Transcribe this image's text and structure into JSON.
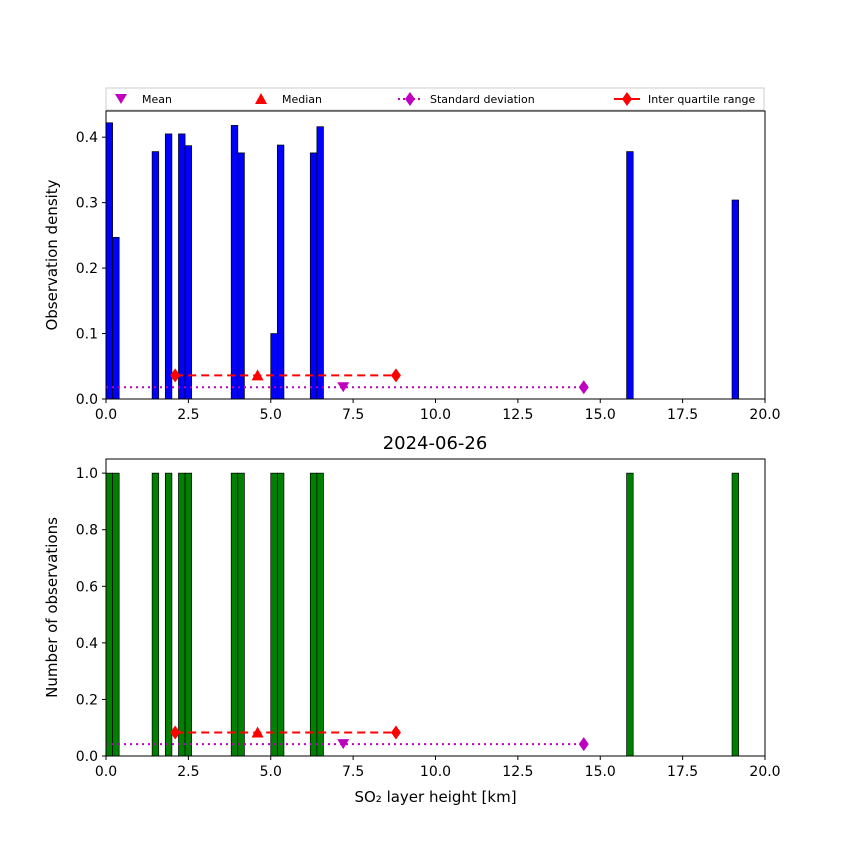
{
  "chart_data": [
    {
      "type": "bar",
      "title": "",
      "xlabel": "",
      "ylabel": "Observation density",
      "xlim": [
        0,
        20
      ],
      "ylim": [
        0,
        0.44
      ],
      "xticks": [
        "0.0",
        "2.5",
        "5.0",
        "7.5",
        "10.0",
        "12.5",
        "15.0",
        "17.5",
        "20.0"
      ],
      "yticks": [
        "0.0",
        "0.1",
        "0.2",
        "0.3",
        "0.4"
      ],
      "bar_color": "#0000ff",
      "bins": [
        {
          "x0": 0.0,
          "x1": 0.2,
          "value": 0.422
        },
        {
          "x0": 0.2,
          "x1": 0.4,
          "value": 0.247
        },
        {
          "x0": 1.4,
          "x1": 1.6,
          "value": 0.378
        },
        {
          "x0": 1.8,
          "x1": 2.0,
          "value": 0.405
        },
        {
          "x0": 2.2,
          "x1": 2.4,
          "value": 0.405
        },
        {
          "x0": 2.4,
          "x1": 2.6,
          "value": 0.387
        },
        {
          "x0": 3.8,
          "x1": 4.0,
          "value": 0.418
        },
        {
          "x0": 4.0,
          "x1": 4.2,
          "value": 0.376
        },
        {
          "x0": 5.0,
          "x1": 5.2,
          "value": 0.1
        },
        {
          "x0": 5.2,
          "x1": 5.4,
          "value": 0.388
        },
        {
          "x0": 6.2,
          "x1": 6.4,
          "value": 0.376
        },
        {
          "x0": 6.4,
          "x1": 6.6,
          "value": 0.416
        },
        {
          "x0": 15.8,
          "x1": 16.0,
          "value": 0.378
        },
        {
          "x0": 19.0,
          "x1": 19.2,
          "value": 0.304
        }
      ],
      "stats": {
        "mean": {
          "x": 7.2,
          "y": 0.018
        },
        "median": {
          "x": 4.6,
          "y": 0.036
        },
        "std_range": {
          "x0": 0.0,
          "x1": 14.5,
          "y": 0.018,
          "marker_x": 14.5
        },
        "iqr_range": {
          "x0": 2.1,
          "x1": 8.8,
          "y": 0.036
        }
      }
    },
    {
      "type": "bar",
      "title": "2024-06-26",
      "xlabel": "SO₂ layer height [km]",
      "ylabel": "Number of observations",
      "xlim": [
        0,
        20
      ],
      "ylim": [
        0,
        1.05
      ],
      "xticks": [
        "0.0",
        "2.5",
        "5.0",
        "7.5",
        "10.0",
        "12.5",
        "15.0",
        "17.5",
        "20.0"
      ],
      "yticks": [
        "0.0",
        "0.2",
        "0.4",
        "0.6",
        "0.8",
        "1.0"
      ],
      "bar_color": "#008000",
      "bins": [
        {
          "x0": 0.0,
          "x1": 0.2,
          "value": 1
        },
        {
          "x0": 0.2,
          "x1": 0.4,
          "value": 1
        },
        {
          "x0": 1.4,
          "x1": 1.6,
          "value": 1
        },
        {
          "x0": 1.8,
          "x1": 2.0,
          "value": 1
        },
        {
          "x0": 2.2,
          "x1": 2.4,
          "value": 1
        },
        {
          "x0": 2.4,
          "x1": 2.6,
          "value": 1
        },
        {
          "x0": 3.8,
          "x1": 4.0,
          "value": 1
        },
        {
          "x0": 4.0,
          "x1": 4.2,
          "value": 1
        },
        {
          "x0": 5.0,
          "x1": 5.2,
          "value": 1
        },
        {
          "x0": 5.2,
          "x1": 5.4,
          "value": 1
        },
        {
          "x0": 6.2,
          "x1": 6.4,
          "value": 1
        },
        {
          "x0": 6.4,
          "x1": 6.6,
          "value": 1
        },
        {
          "x0": 15.8,
          "x1": 16.0,
          "value": 1
        },
        {
          "x0": 19.0,
          "x1": 19.2,
          "value": 1
        }
      ],
      "stats": {
        "mean": {
          "x": 7.2,
          "y": 0.042
        },
        "median": {
          "x": 4.6,
          "y": 0.083
        },
        "std_range": {
          "x0": 0.0,
          "x1": 14.5,
          "y": 0.042,
          "marker_x": 14.5
        },
        "iqr_range": {
          "x0": 2.1,
          "x1": 8.8,
          "y": 0.083
        }
      }
    }
  ],
  "legend": {
    "placement": "top",
    "items": [
      {
        "label": "Mean",
        "marker": "triangle-down",
        "color": "#bf00bf"
      },
      {
        "label": "Median",
        "marker": "triangle-up",
        "color": "#ff0000"
      },
      {
        "label": "Standard deviation",
        "marker": "diamond-dotted-line",
        "color": "#bf00bf"
      },
      {
        "label": "Inter quartile range",
        "marker": "diamond-dashed-line",
        "color": "#ff0000"
      }
    ]
  },
  "colors": {
    "mean": "#bf00bf",
    "median": "#ff0000",
    "std": "#bf00bf",
    "iqr": "#ff0000"
  }
}
